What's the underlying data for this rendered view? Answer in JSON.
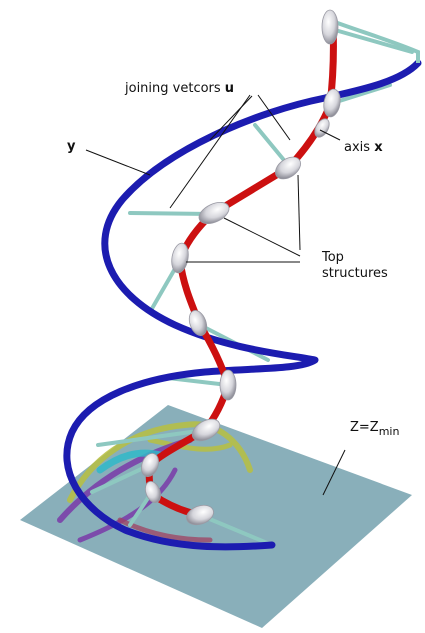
{
  "labels": {
    "joining_text": "joining vetcors ",
    "joining_var": "u",
    "y_var": "y",
    "axis_text": "axis ",
    "axis_var": "x",
    "top_line1": "Top",
    "top_line2": "structures",
    "z_eq": "Z=Z",
    "z_sub": "min"
  },
  "colors": {
    "helix": "#1c1cb0",
    "axis": "#cc1010",
    "connector": "#8ec8c0",
    "node": "#d8d8de",
    "plane": "#7fa8b4",
    "shadow_purple": "#7a3aa8",
    "shadow_yellow": "#b8c040",
    "shadow_cyan": "#30b8c8"
  }
}
